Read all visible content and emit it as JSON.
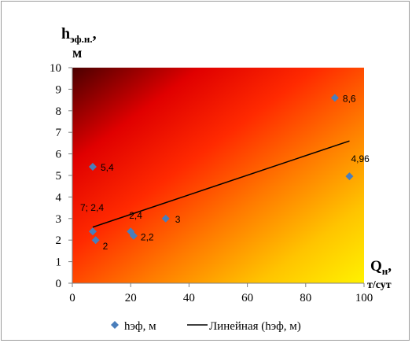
{
  "chart_data": {
    "type": "scatter",
    "ylabel_main": "h",
    "ylabel_sub": "эф.н.",
    "ylabel_comma": ",",
    "ylabel_unit": "м",
    "xlabel_main": "Q",
    "xlabel_sub": "н",
    "xlabel_comma": ",",
    "xlabel_unit": "т/сут",
    "xlim": [
      0,
      100
    ],
    "ylim": [
      0,
      10
    ],
    "xticks": [
      "0",
      "20",
      "40",
      "60",
      "80",
      "100"
    ],
    "yticks": [
      "0",
      "1",
      "2",
      "3",
      "4",
      "5",
      "6",
      "7",
      "8",
      "9",
      "10"
    ],
    "grid": false,
    "legend_position": "bottom",
    "series": [
      {
        "name": "hэф, м",
        "marker": "diamond",
        "color": "#4a7ebb",
        "points": [
          {
            "x": 7,
            "y": 2.4,
            "label": "7; 2,4"
          },
          {
            "x": 8,
            "y": 2,
            "label": "2"
          },
          {
            "x": 7,
            "y": 5.4,
            "label": "5,4"
          },
          {
            "x": 20,
            "y": 2.4,
            "label": "2,4"
          },
          {
            "x": 21,
            "y": 2.2,
            "label": "2,2"
          },
          {
            "x": 32,
            "y": 3,
            "label": "3"
          },
          {
            "x": 90,
            "y": 8.6,
            "label": "8,6"
          },
          {
            "x": 95,
            "y": 4.96,
            "label": "4,96"
          }
        ]
      }
    ],
    "trendline": {
      "name": "Линейная (hэф, м)",
      "type": "linear",
      "color": "#000000",
      "x": [
        7,
        95
      ],
      "y": [
        2.6,
        6.6
      ]
    },
    "background_gradient": [
      "#5a0000",
      "#ff1a00",
      "#ffee00"
    ]
  }
}
